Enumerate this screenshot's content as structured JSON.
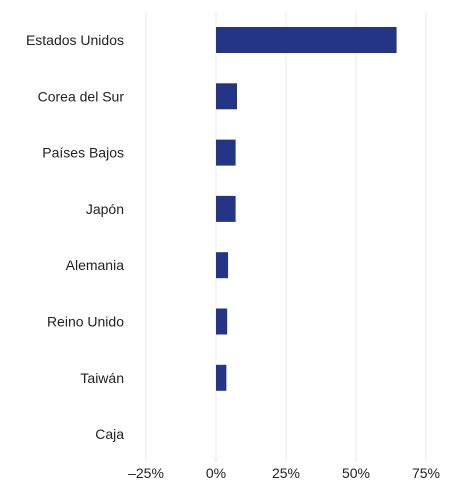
{
  "chart_data": {
    "type": "bar",
    "orientation": "horizontal",
    "categories": [
      "Estados Unidos",
      "Corea del Sur",
      "Países Bajos",
      "Japón",
      "Alemania",
      "Reino Unido",
      "Taiwán",
      "Caja"
    ],
    "values": [
      64.5,
      7.5,
      7.0,
      7.0,
      4.3,
      4.0,
      3.7,
      0
    ],
    "xlim": [
      -25,
      80
    ],
    "xticks": [
      -25,
      0,
      25,
      50,
      75
    ],
    "xtick_labels": [
      "–25%",
      "0%",
      "25%",
      "50%",
      "75%"
    ],
    "title": "",
    "xlabel": "",
    "ylabel": "",
    "grid": "vertical",
    "legend": "none",
    "colors": {
      "bar": "#253585",
      "grid": "#e8e8e8",
      "text": "#222222"
    }
  }
}
